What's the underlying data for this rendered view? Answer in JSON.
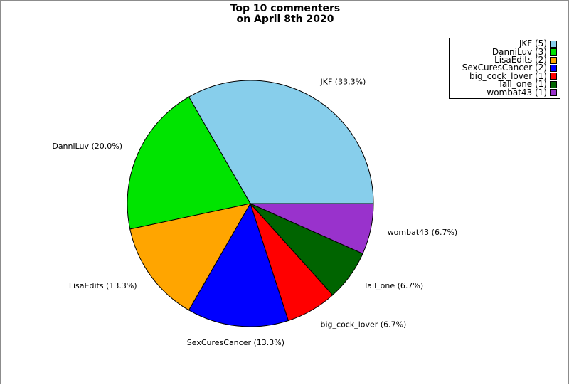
{
  "title": {
    "line1": "Top 10 commenters",
    "line2": "on April 8th 2020"
  },
  "colors": {
    "background": "#ffffff",
    "frame_border": "#8c8c8c",
    "wedge_outline": "#000000",
    "legend_border": "#000000"
  },
  "chart_data": {
    "type": "pie",
    "title": "Top 10 commenters on April 8th 2020",
    "start_angle_deg": 0,
    "direction": "counterclockwise",
    "total": 15,
    "legend_position": "top-right",
    "slices": [
      {
        "name": "JKF",
        "count": 5,
        "pct": 33.3,
        "pie_label": "JKF (33.3%)",
        "legend_label": "JKF (5)",
        "color": "#87CEEB"
      },
      {
        "name": "DanniLuv",
        "count": 3,
        "pct": 20.0,
        "pie_label": "DanniLuv (20.0%)",
        "legend_label": "DanniLuv (3)",
        "color": "#00E400"
      },
      {
        "name": "LisaEdits",
        "count": 2,
        "pct": 13.3,
        "pie_label": "LisaEdits (13.3%)",
        "legend_label": "LisaEdits (2)",
        "color": "#FFA500"
      },
      {
        "name": "SexCuresCancer",
        "count": 2,
        "pct": 13.3,
        "pie_label": "SexCuresCancer (13.3%)",
        "legend_label": "SexCuresCancer (2)",
        "color": "#0000FF"
      },
      {
        "name": "big_cock_lover",
        "count": 1,
        "pct": 6.7,
        "pie_label": "big_cock_lover (6.7%)",
        "legend_label": "big_cock_lover (1)",
        "color": "#FF0000"
      },
      {
        "name": "Tall_one",
        "count": 1,
        "pct": 6.7,
        "pie_label": "Tall_one (6.7%)",
        "legend_label": "Tall_one (1)",
        "color": "#006400"
      },
      {
        "name": "wombat43",
        "count": 1,
        "pct": 6.7,
        "pie_label": "wombat43 (6.7%)",
        "legend_label": "wombat43 (1)",
        "color": "#9932CC"
      }
    ]
  }
}
